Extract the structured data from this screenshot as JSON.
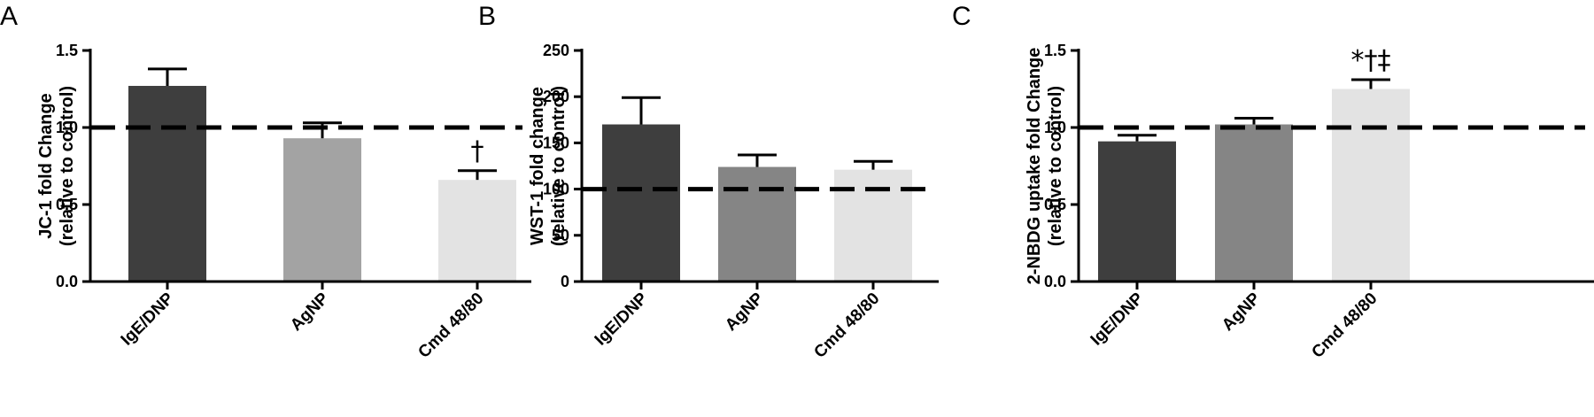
{
  "chart_data": [
    {
      "type": "bar",
      "panel": "A",
      "ylabel": [
        "JC-1 fold Change",
        "(relative to control)"
      ],
      "categories": [
        "IgE/DNP",
        "AgNP",
        "Cmd 48/80"
      ],
      "values": [
        1.27,
        0.93,
        0.66
      ],
      "errors": [
        0.11,
        0.1,
        0.06
      ],
      "colors": [
        "#3e3e3e",
        "#a3a3a3",
        "#e3e3e3"
      ],
      "ylim": [
        0,
        1.5
      ],
      "yticks": [
        0.0,
        0.5,
        1.0,
        1.5
      ],
      "ytick_labels": [
        "0.0",
        "0.5",
        "1.0",
        "1.5"
      ],
      "reference_line": 1.0,
      "annotations": [
        {
          "category": "Cmd 48/80",
          "text": "†"
        }
      ]
    },
    {
      "type": "bar",
      "panel": "B",
      "ylabel": [
        "WST-1 fold change",
        "(relative to control)"
      ],
      "categories": [
        "IgE/DNP",
        "AgNP",
        "Cmd 48/80"
      ],
      "values": [
        170,
        124,
        121
      ],
      "errors": [
        29,
        13,
        9
      ],
      "colors": [
        "#3e3e3e",
        "#858585",
        "#e3e3e3"
      ],
      "ylim": [
        0,
        250
      ],
      "yticks": [
        0,
        50,
        100,
        150,
        200,
        250
      ],
      "ytick_labels": [
        "0",
        "50",
        "100",
        "150",
        "200",
        "250"
      ],
      "reference_line": 100,
      "annotations": []
    },
    {
      "type": "bar",
      "panel": "C",
      "ylabel": [
        "2-NBDG uptake fold Change",
        "(relative to control)"
      ],
      "categories": [
        "IgE/DNP",
        "AgNP",
        "Cmd 48/80"
      ],
      "values": [
        0.91,
        1.02,
        1.25
      ],
      "errors": [
        0.04,
        0.04,
        0.06
      ],
      "colors": [
        "#3e3e3e",
        "#858585",
        "#e3e3e3"
      ],
      "ylim": [
        0,
        1.5
      ],
      "yticks": [
        0.0,
        0.5,
        1.0,
        1.5
      ],
      "ytick_labels": [
        "0.0",
        "0.5",
        "1.0",
        "1.5"
      ],
      "reference_line": 1.0,
      "annotations": [
        {
          "category": "Cmd 48/80",
          "text": "*†‡"
        }
      ]
    }
  ]
}
